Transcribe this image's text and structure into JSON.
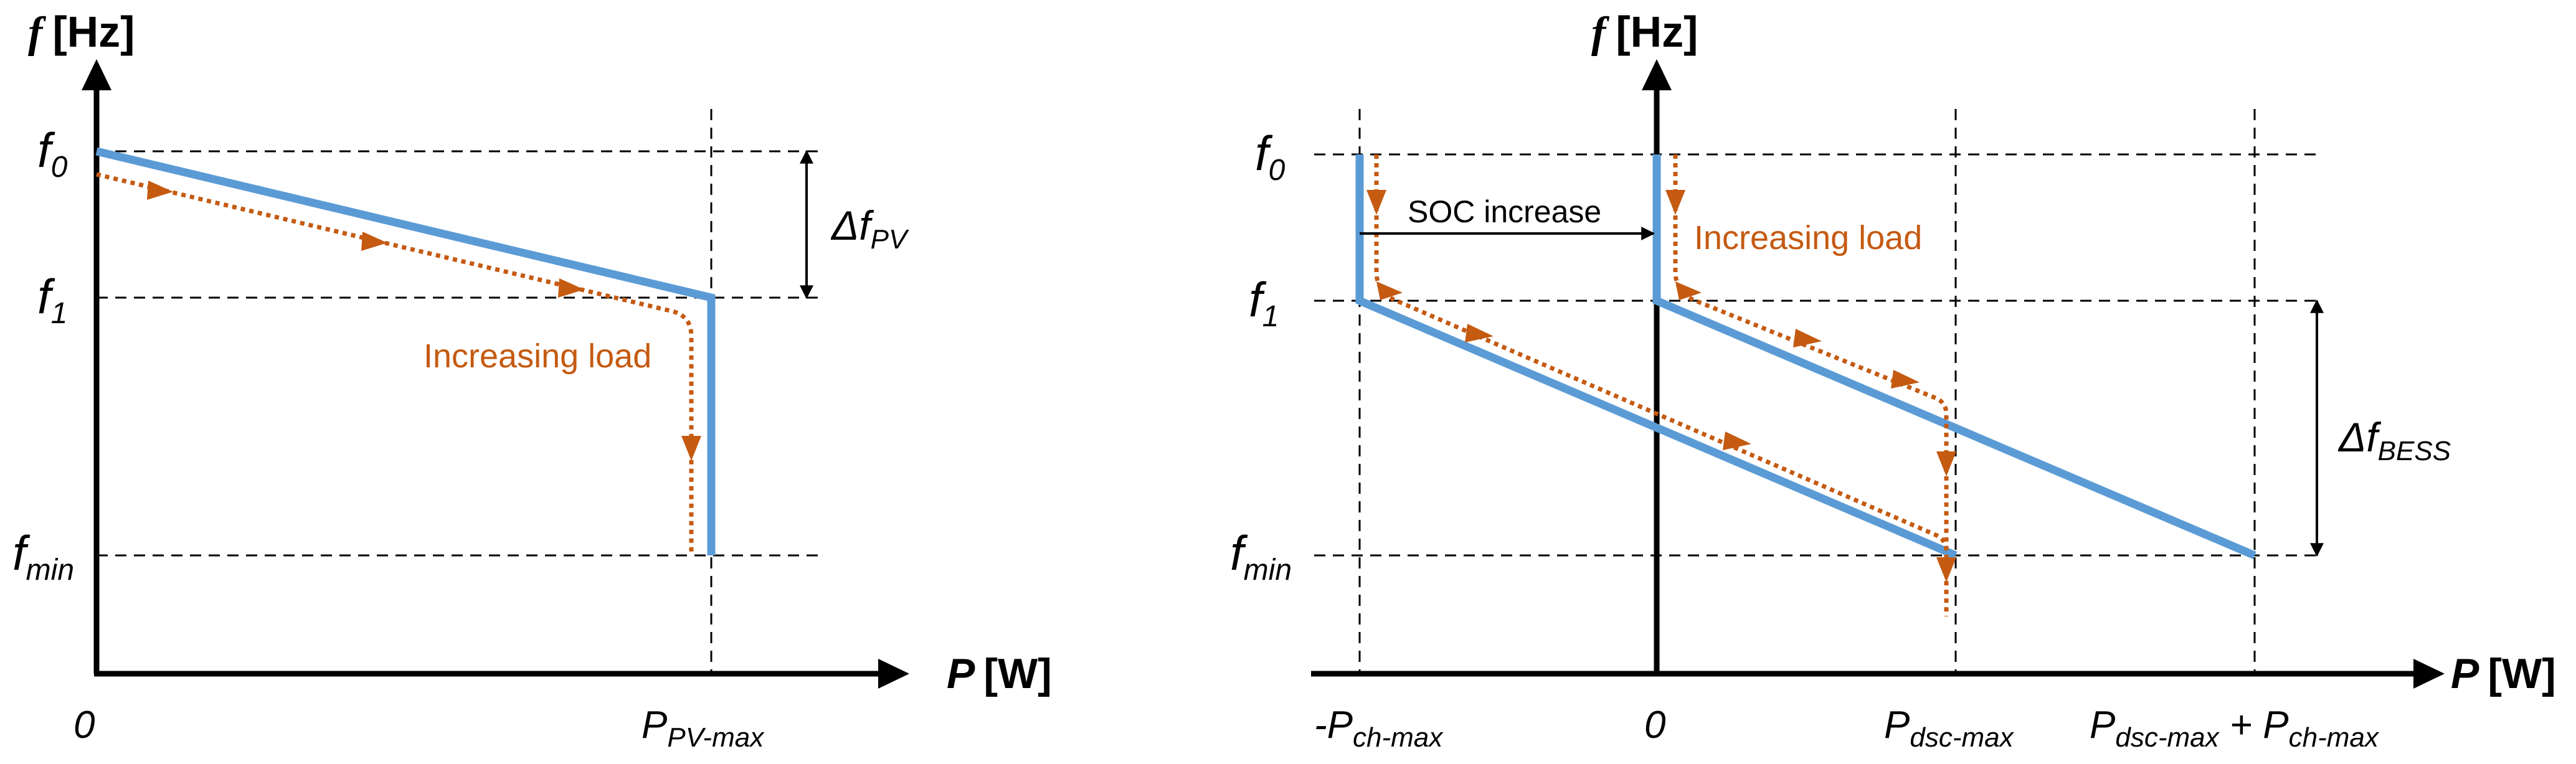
{
  "colors": {
    "curve": "#5b9bd5",
    "load_path": "#c55a11",
    "axis": "#000000",
    "guide": "#000000"
  },
  "left_panel": {
    "y_axis_title": {
      "symbol": "f",
      "unit": "[Hz]"
    },
    "x_axis_title": {
      "symbol": "P",
      "unit": "[W]"
    },
    "y_ticks": {
      "f0": {
        "base": "f",
        "sub": "0"
      },
      "f1": {
        "base": "f",
        "sub": "1"
      },
      "fmin": {
        "base": "f",
        "sub": "min"
      }
    },
    "x_ticks": {
      "zero": "0",
      "pmax": {
        "base": "P",
        "sub": "PV-max"
      }
    },
    "delta_label": {
      "base": "Δf",
      "sub": "PV"
    },
    "load_label": "Increasing load"
  },
  "right_panel": {
    "y_axis_title": {
      "symbol": "f",
      "unit": "[Hz]"
    },
    "x_axis_title": {
      "symbol": "P",
      "unit": "[W]"
    },
    "y_ticks": {
      "f0": {
        "base": "f",
        "sub": "0"
      },
      "f1": {
        "base": "f",
        "sub": "1"
      },
      "fmin": {
        "base": "f",
        "sub": "min"
      }
    },
    "x_ticks": {
      "neg_ch": {
        "prefix": "-P",
        "sub": "ch-max"
      },
      "zero": "0",
      "dsc": {
        "base": "P",
        "sub": "dsc-max"
      },
      "sum": {
        "base1": "P",
        "sub1": "dsc-max",
        "plus": " + P",
        "sub2": "ch-max"
      }
    },
    "delta_label": {
      "base": "Δf",
      "sub": "BESS"
    },
    "soc_label": "SOC increase",
    "load_label": "Increasing load"
  }
}
